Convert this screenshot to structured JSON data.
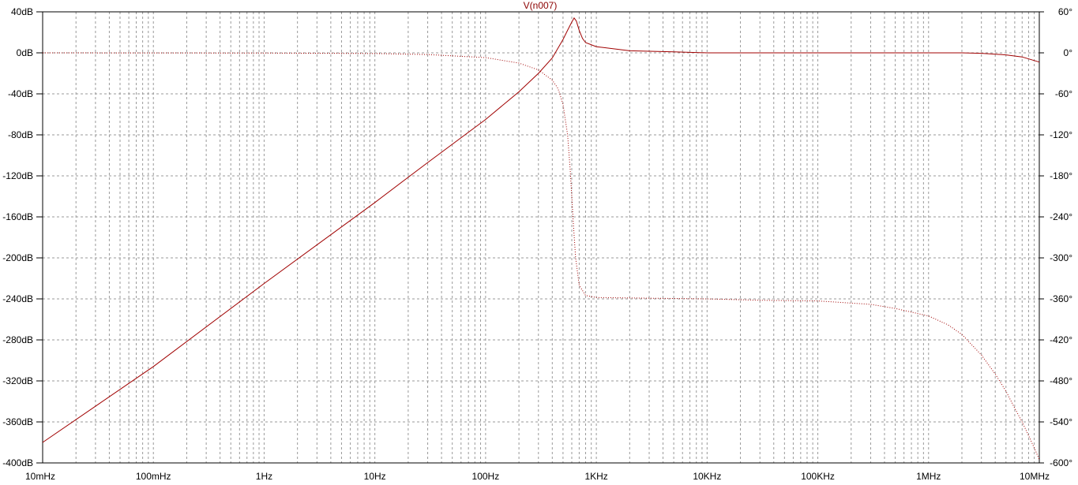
{
  "chart_data": {
    "type": "line",
    "title": "V(n007)",
    "x_scale": "log",
    "x_range_hz": [
      0.01,
      10000000
    ],
    "x_ticks": [
      {
        "value": 0.01,
        "label": "10mHz"
      },
      {
        "value": 0.1,
        "label": "100mHz"
      },
      {
        "value": 1,
        "label": "1Hz"
      },
      {
        "value": 10,
        "label": "10Hz"
      },
      {
        "value": 100,
        "label": "100Hz"
      },
      {
        "value": 1000,
        "label": "1KHz"
      },
      {
        "value": 10000,
        "label": "10KHz"
      },
      {
        "value": 100000,
        "label": "100KHz"
      },
      {
        "value": 1000000,
        "label": "1MHz"
      },
      {
        "value": 10000000,
        "label": "10MHz"
      }
    ],
    "y_left": {
      "unit": "dB",
      "range": [
        -400,
        40
      ],
      "ticks": [
        {
          "value": 40,
          "label": "40dB"
        },
        {
          "value": 0,
          "label": "0dB"
        },
        {
          "value": -40,
          "label": "-40dB"
        },
        {
          "value": -80,
          "label": "-80dB"
        },
        {
          "value": -120,
          "label": "-120dB"
        },
        {
          "value": -160,
          "label": "-160dB"
        },
        {
          "value": -200,
          "label": "-200dB"
        },
        {
          "value": -240,
          "label": "-240dB"
        },
        {
          "value": -280,
          "label": "-280dB"
        },
        {
          "value": -320,
          "label": "-320dB"
        },
        {
          "value": -360,
          "label": "-360dB"
        },
        {
          "value": -400,
          "label": "-400dB"
        }
      ]
    },
    "y_right": {
      "unit": "degrees",
      "range": [
        -600,
        60
      ],
      "ticks": [
        {
          "value": 60,
          "label": "60°"
        },
        {
          "value": 0,
          "label": "0°"
        },
        {
          "value": -60,
          "label": "-60°"
        },
        {
          "value": -120,
          "label": "-120°"
        },
        {
          "value": -180,
          "label": "-180°"
        },
        {
          "value": -240,
          "label": "-240°"
        },
        {
          "value": -300,
          "label": "-300°"
        },
        {
          "value": -360,
          "label": "-360°"
        },
        {
          "value": -420,
          "label": "-420°"
        },
        {
          "value": -480,
          "label": "-480°"
        },
        {
          "value": -540,
          "label": "-540°"
        },
        {
          "value": -600,
          "label": "-600°"
        }
      ]
    },
    "grid": true,
    "series": [
      {
        "axis": "left",
        "style": "solid",
        "color": "#a00000",
        "points": [
          [
            0.01,
            -380
          ],
          [
            0.1,
            -306
          ],
          [
            1,
            -225
          ],
          [
            10,
            -146
          ],
          [
            30,
            -107
          ],
          [
            100,
            -65
          ],
          [
            200,
            -38
          ],
          [
            300,
            -20
          ],
          [
            400,
            -5
          ],
          [
            500,
            13
          ],
          [
            550,
            22
          ],
          [
            600,
            30
          ],
          [
            630,
            34
          ],
          [
            660,
            31
          ],
          [
            700,
            22
          ],
          [
            750,
            14
          ],
          [
            800,
            10
          ],
          [
            1000,
            6
          ],
          [
            2000,
            2
          ],
          [
            5000,
            1
          ],
          [
            10000,
            0
          ],
          [
            100000,
            0
          ],
          [
            1000000,
            0
          ],
          [
            2000000,
            0
          ],
          [
            3000000,
            -0.5
          ],
          [
            5000000,
            -2
          ],
          [
            7000000,
            -4
          ],
          [
            10000000,
            -9
          ]
        ]
      },
      {
        "axis": "right",
        "style": "dotted",
        "color": "#a00000",
        "points": [
          [
            0.01,
            0
          ],
          [
            1,
            -0.3
          ],
          [
            10,
            -1
          ],
          [
            30,
            -2.5
          ],
          [
            100,
            -7
          ],
          [
            200,
            -15
          ],
          [
            300,
            -25
          ],
          [
            400,
            -40
          ],
          [
            450,
            -52
          ],
          [
            500,
            -75
          ],
          [
            550,
            -120
          ],
          [
            580,
            -170
          ],
          [
            600,
            -210
          ],
          [
            620,
            -250
          ],
          [
            650,
            -300
          ],
          [
            700,
            -340
          ],
          [
            800,
            -355
          ],
          [
            1000,
            -358
          ],
          [
            3000,
            -359
          ],
          [
            10000,
            -360
          ],
          [
            30000,
            -362
          ],
          [
            100000,
            -363
          ],
          [
            300000,
            -368
          ],
          [
            500000,
            -374
          ],
          [
            1000000,
            -385
          ],
          [
            1500000,
            -398
          ],
          [
            2000000,
            -412
          ],
          [
            3000000,
            -442
          ],
          [
            4000000,
            -470
          ],
          [
            5000000,
            -495
          ],
          [
            6000000,
            -520
          ],
          [
            7000000,
            -540
          ],
          [
            8000000,
            -560
          ],
          [
            9000000,
            -578
          ],
          [
            10000000,
            -595
          ]
        ]
      }
    ]
  }
}
